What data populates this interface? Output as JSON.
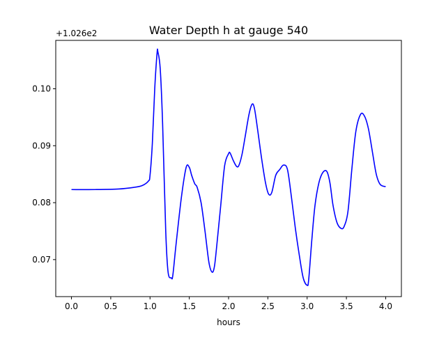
{
  "chart_data": {
    "type": "line",
    "title": "Water Depth h at gauge 540",
    "xlabel": "hours",
    "ylabel": "",
    "axis_offset_label": "+1.026e2",
    "x_ticks": [
      0.0,
      0.5,
      1.0,
      1.5,
      2.0,
      2.5,
      3.0,
      3.5,
      4.0
    ],
    "x_tick_labels": [
      "0.0",
      "0.5",
      "1.0",
      "1.5",
      "2.0",
      "2.5",
      "3.0",
      "3.5",
      "4.0"
    ],
    "y_ticks": [
      0.07,
      0.08,
      0.09,
      0.1
    ],
    "y_tick_labels": [
      "0.07",
      "0.08",
      "0.09",
      "0.10"
    ],
    "xlim": [
      -0.2,
      4.2
    ],
    "ylim": [
      0.0635,
      0.1085
    ],
    "grid": false,
    "legend": "none",
    "series": [
      {
        "color": "#0000ff",
        "x": [
          0.0,
          0.3,
          0.6,
          0.8,
          0.9,
          0.98,
          1.0,
          1.03,
          1.06,
          1.09,
          1.1,
          1.13,
          1.16,
          1.2,
          1.23,
          1.27,
          1.29,
          1.33,
          1.4,
          1.46,
          1.5,
          1.53,
          1.57,
          1.6,
          1.65,
          1.7,
          1.75,
          1.79,
          1.82,
          1.85,
          1.9,
          1.95,
          2.0,
          2.02,
          2.06,
          2.1,
          2.13,
          2.17,
          2.21,
          2.26,
          2.3,
          2.33,
          2.37,
          2.42,
          2.47,
          2.51,
          2.55,
          2.6,
          2.65,
          2.7,
          2.75,
          2.8,
          2.85,
          2.9,
          2.95,
          3.0,
          3.02,
          3.06,
          3.1,
          3.15,
          3.2,
          3.25,
          3.29,
          3.33,
          3.38,
          3.43,
          3.47,
          3.52,
          3.57,
          3.62,
          3.68,
          3.73,
          3.78,
          3.83,
          3.88,
          3.93,
          4.0
        ],
        "y": [
          0.0823,
          0.0823,
          0.0824,
          0.0827,
          0.083,
          0.0838,
          0.0848,
          0.0905,
          0.1,
          0.1063,
          0.1065,
          0.1035,
          0.094,
          0.075,
          0.0678,
          0.0668,
          0.0672,
          0.0725,
          0.081,
          0.0862,
          0.0862,
          0.0848,
          0.0833,
          0.0827,
          0.08,
          0.075,
          0.0695,
          0.0678,
          0.0688,
          0.0725,
          0.0795,
          0.0865,
          0.0886,
          0.0887,
          0.0874,
          0.0864,
          0.0865,
          0.0884,
          0.0915,
          0.0955,
          0.0973,
          0.0965,
          0.0928,
          0.0878,
          0.0835,
          0.0815,
          0.0818,
          0.0848,
          0.0858,
          0.0866,
          0.0858,
          0.081,
          0.0755,
          0.0708,
          0.0668,
          0.0655,
          0.0665,
          0.0735,
          0.0795,
          0.0835,
          0.0853,
          0.0855,
          0.0835,
          0.0795,
          0.0765,
          0.0755,
          0.0758,
          0.0785,
          0.086,
          0.0925,
          0.0955,
          0.0952,
          0.093,
          0.089,
          0.085,
          0.0832,
          0.0828
        ]
      }
    ]
  }
}
